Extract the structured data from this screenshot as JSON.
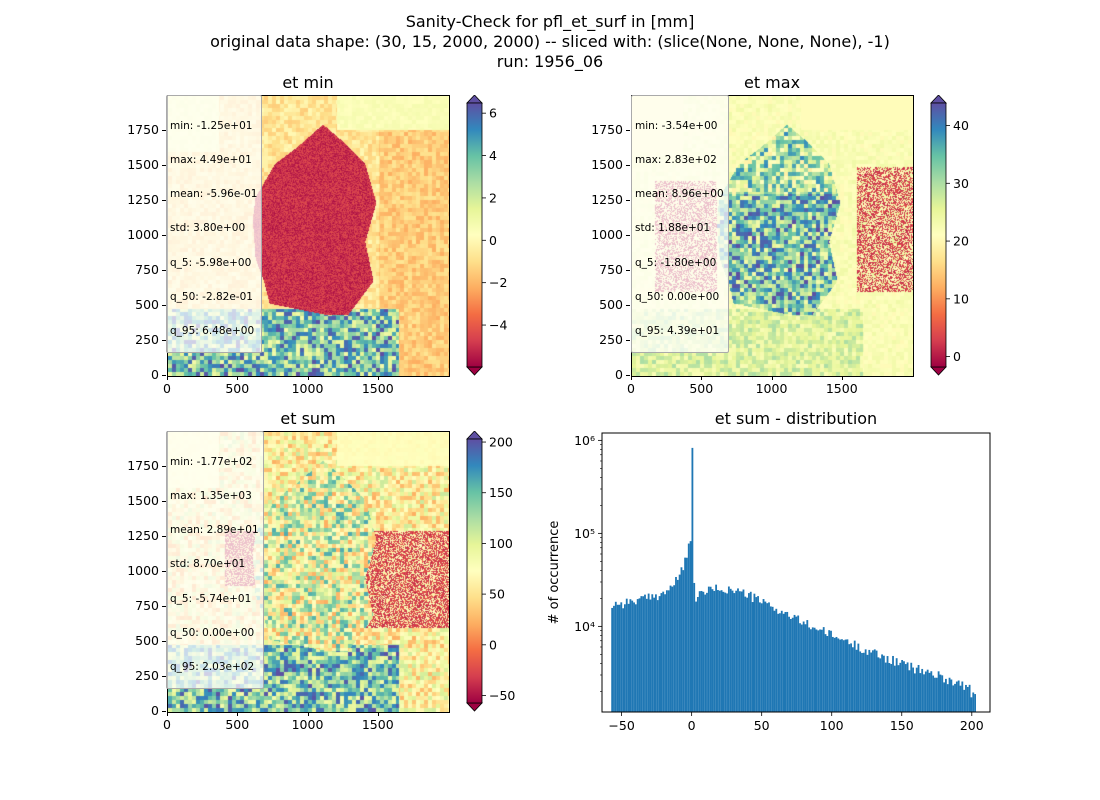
{
  "figure": {
    "title_lines": [
      "Sanity-Check for pfl_et_surf in [mm]",
      "original data shape: (30, 15, 2000, 2000) -- sliced with: (slice(None, None, None), -1)",
      "run: 1956_06"
    ]
  },
  "colors": {
    "histogram_bar": "#1f77b4",
    "colormap": [
      "#9e0142",
      "#d53e4f",
      "#f46d43",
      "#fdae61",
      "#fee08b",
      "#ffffbf",
      "#e6f598",
      "#abdda4",
      "#66c2a5",
      "#3288bd",
      "#5e4fa2"
    ]
  },
  "chart_data": [
    {
      "type": "heatmap",
      "title": "et min",
      "colormap": "Spectral",
      "x_range": [
        0,
        2000
      ],
      "y_range": [
        0,
        2000
      ],
      "x_ticks": [
        0,
        500,
        1000,
        1500
      ],
      "y_ticks": [
        0,
        250,
        500,
        750,
        1000,
        1250,
        1500,
        1750
      ],
      "stats": [
        "min: -1.25e+01",
        "max: 4.49e+01",
        "mean: -5.96e-01",
        "std: 3.80e+00",
        "q_5: -5.98e+00",
        "q_50: -2.82e-01",
        "q_95: 6.48e+00"
      ],
      "colorbar": {
        "vmin": -5.98,
        "vmax": 6.48,
        "ticks": [
          -4,
          -2,
          0,
          2,
          4,
          6
        ],
        "tick_labels": [
          "−4",
          "−2",
          "0",
          "2",
          "4",
          "6"
        ],
        "extend": "both"
      }
    },
    {
      "type": "heatmap",
      "title": "et max",
      "colormap": "Spectral",
      "x_range": [
        0,
        2000
      ],
      "y_range": [
        0,
        2000
      ],
      "x_ticks": [
        0,
        500,
        1000,
        1500
      ],
      "y_ticks": [
        0,
        250,
        500,
        750,
        1000,
        1250,
        1500,
        1750
      ],
      "stats": [
        "min: -3.54e+00",
        "max: 2.83e+02",
        "mean: 8.96e+00",
        "std: 1.88e+01",
        "q_5: -1.80e+00",
        "q_50: 0.00e+00",
        "q_95: 4.39e+01"
      ],
      "colorbar": {
        "vmin": -1.8,
        "vmax": 43.9,
        "ticks": [
          0,
          10,
          20,
          30,
          40
        ],
        "tick_labels": [
          "0",
          "10",
          "20",
          "30",
          "40"
        ],
        "extend": "both"
      }
    },
    {
      "type": "heatmap",
      "title": "et sum",
      "colormap": "Spectral",
      "x_range": [
        0,
        2000
      ],
      "y_range": [
        0,
        2000
      ],
      "x_ticks": [
        0,
        500,
        1000,
        1500
      ],
      "y_ticks": [
        0,
        250,
        500,
        750,
        1000,
        1250,
        1500,
        1750
      ],
      "stats": [
        "min: -1.77e+02",
        "max: 1.35e+03",
        "mean: 2.89e+01",
        "std: 8.70e+01",
        "q_5: -5.74e+01",
        "q_50: 0.00e+00",
        "q_95: 2.03e+02"
      ],
      "colorbar": {
        "vmin": -57.4,
        "vmax": 203,
        "ticks": [
          -50,
          0,
          50,
          100,
          150,
          200
        ],
        "tick_labels": [
          "−50",
          "0",
          "50",
          "100",
          "150",
          "200"
        ],
        "extend": "both"
      }
    },
    {
      "type": "bar",
      "title": "et sum - distribution",
      "ylabel": "# of occurrence",
      "xlabel": "",
      "yscale": "log",
      "xlim": [
        -64,
        213
      ],
      "ylim": [
        1200,
        1200000
      ],
      "x_ticks": [
        -50,
        0,
        50,
        100,
        150,
        200
      ],
      "x_tick_labels": [
        "−50",
        "0",
        "50",
        "100",
        "150",
        "200"
      ],
      "y_ticks": [
        10000,
        100000,
        1000000
      ],
      "y_tick_labels": [
        "10⁴",
        "10⁵",
        "10⁶"
      ],
      "bin_start": -57.4,
      "bin_end": 203,
      "bin_count": 200,
      "spike_value": 0,
      "spike_count": 830000,
      "profile_x": [
        -57,
        -55,
        -50,
        -45,
        -40,
        -35,
        -30,
        -25,
        -20,
        -15,
        -10,
        -7,
        -5,
        -3,
        -2,
        -1,
        0,
        2,
        5,
        10,
        15,
        20,
        25,
        30,
        35,
        40,
        50,
        60,
        70,
        80,
        90,
        100,
        110,
        120,
        130,
        140,
        150,
        160,
        170,
        180,
        190,
        198,
        200,
        202
      ],
      "profile_y": [
        16500,
        18000,
        17500,
        18500,
        19000,
        19500,
        20500,
        21500,
        23000,
        26000,
        32000,
        40000,
        50000,
        62000,
        70000,
        75000,
        830000,
        20000,
        21500,
        24000,
        25000,
        25500,
        25000,
        24500,
        23500,
        22000,
        18500,
        15500,
        13000,
        11000,
        9500,
        8000,
        7000,
        6000,
        5200,
        4500,
        4000,
        3500,
        3200,
        2800,
        2500,
        2200,
        1900,
        1750
      ]
    }
  ]
}
